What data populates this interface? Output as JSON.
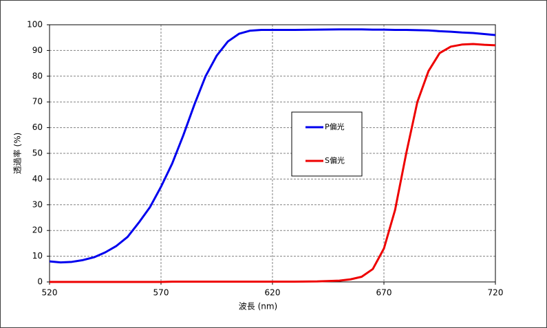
{
  "chart_data": {
    "type": "line",
    "x_label": "波長 (nm)",
    "y_label": "透過率 (%)",
    "x": [
      520,
      525,
      530,
      535,
      540,
      545,
      550,
      555,
      560,
      565,
      570,
      575,
      580,
      585,
      590,
      595,
      600,
      605,
      610,
      615,
      620,
      630,
      640,
      650,
      655,
      660,
      665,
      670,
      675,
      680,
      685,
      690,
      695,
      700,
      705,
      710,
      715,
      720
    ],
    "series": [
      {
        "name": "P偏光",
        "color": "#0000ee",
        "values": [
          8,
          7.6,
          7.8,
          8.5,
          9.6,
          11.5,
          14,
          17.5,
          23,
          29,
          37,
          46,
          57,
          69,
          80,
          88,
          93.5,
          96.5,
          97.7,
          98,
          98,
          98,
          98.1,
          98.2,
          98.2,
          98.2,
          98.1,
          98.1,
          98,
          98,
          97.9,
          97.8,
          97.5,
          97.3,
          97,
          96.8,
          96.4,
          96
        ]
      },
      {
        "name": "S偏光",
        "color": "#ee0000",
        "values": [
          0,
          0,
          0,
          0,
          0,
          0,
          0,
          0,
          0,
          0,
          0,
          0.1,
          0.1,
          0.1,
          0.1,
          0.1,
          0.1,
          0.1,
          0.1,
          0.1,
          0.1,
          0.1,
          0.2,
          0.5,
          1,
          2,
          5,
          13,
          28,
          50,
          70,
          82,
          89,
          91.5,
          92.3,
          92.5,
          92.2,
          92
        ]
      }
    ],
    "xlim": [
      520,
      720
    ],
    "xticks": [
      520,
      570,
      620,
      670,
      720
    ],
    "ylim": [
      0,
      100
    ],
    "yticks": [
      0,
      10,
      20,
      30,
      40,
      50,
      60,
      70,
      80,
      90,
      100
    ],
    "grid": true,
    "legend": "center"
  }
}
